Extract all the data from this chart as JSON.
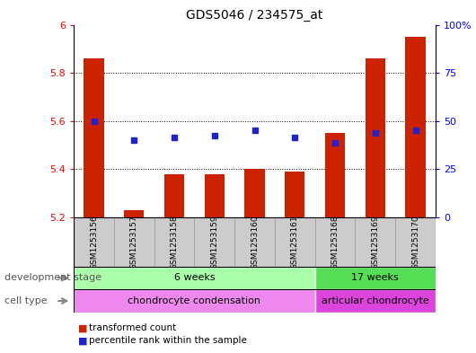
{
  "title": "GDS5046 / 234575_at",
  "samples": [
    "GSM1253156",
    "GSM1253157",
    "GSM1253158",
    "GSM1253159",
    "GSM1253160",
    "GSM1253161",
    "GSM1253168",
    "GSM1253169",
    "GSM1253170"
  ],
  "transformed_count": [
    5.86,
    5.23,
    5.38,
    5.38,
    5.4,
    5.39,
    5.55,
    5.86,
    5.95
  ],
  "percentile_rank": [
    5.6,
    5.52,
    5.53,
    5.54,
    5.56,
    5.53,
    5.51,
    5.55,
    5.56
  ],
  "ylim_left": [
    5.2,
    6.0
  ],
  "ylim_right": [
    0,
    100
  ],
  "yticks_left": [
    5.2,
    5.4,
    5.6,
    5.8,
    6.0
  ],
  "ytick_labels_left": [
    "5.2",
    "5.4",
    "5.6",
    "5.8",
    "6"
  ],
  "yticks_right": [
    0,
    25,
    50,
    75,
    100
  ],
  "ytick_labels_right": [
    "0",
    "25",
    "50",
    "75",
    "100%"
  ],
  "bar_color": "#cc2200",
  "dot_color": "#2222cc",
  "baseline": 5.2,
  "dev_group_bounds": [
    [
      0,
      5,
      "6 weeks",
      "#aaffaa"
    ],
    [
      6,
      8,
      "17 weeks",
      "#55dd55"
    ]
  ],
  "cell_group_bounds": [
    [
      0,
      5,
      "chondrocyte condensation",
      "#ee88ee"
    ],
    [
      6,
      8,
      "articular chondrocyte",
      "#dd44dd"
    ]
  ],
  "dev_stage_label": "development stage",
  "cell_type_label": "cell type",
  "legend_bar_label": "transformed count",
  "legend_dot_label": "percentile rank within the sample",
  "grid_dotted_at": [
    5.4,
    5.6,
    5.8
  ],
  "bar_width": 0.5,
  "background_color": "#ffffff",
  "xticklabel_bg": "#cccccc",
  "xticklabel_border": "#999999"
}
